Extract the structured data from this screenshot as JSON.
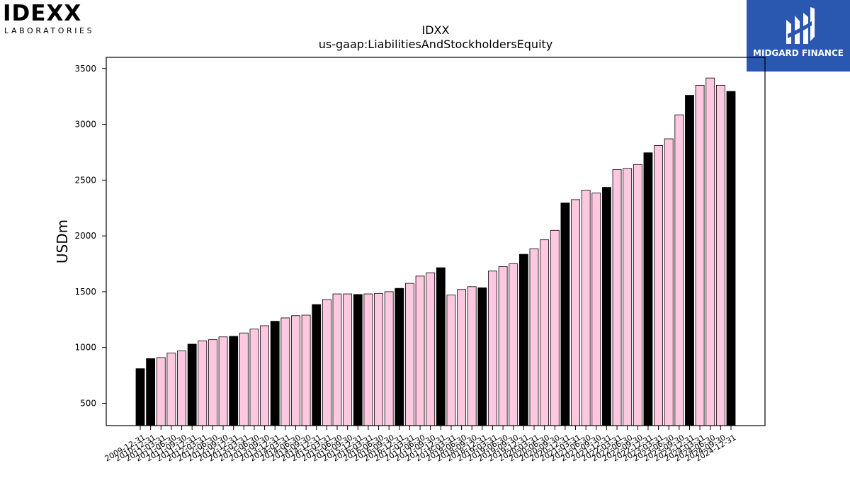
{
  "logos": {
    "left": {
      "name": "IDEXX",
      "sub": "LABORATORIES"
    },
    "right": {
      "name": "MIDGARD FINANCE",
      "bg": "#2a58b0"
    }
  },
  "chart_data": {
    "type": "bar",
    "title": "IDXX",
    "subtitle": "us-gaap:LiabilitiesAndStockholdersEquity",
    "ylabel": "USDm",
    "xlabel": "",
    "ylim": [
      300,
      3600
    ],
    "yticks": [
      500,
      1000,
      1500,
      2000,
      2500,
      3000,
      3500
    ],
    "grid": false,
    "colors": {
      "q4": "#000000",
      "other": "#ffc8e1"
    },
    "categories": [
      "2009-12-31",
      "2010-12-31",
      "2011-03-31",
      "2011-06-30",
      "2011-09-30",
      "2011-12-31",
      "2012-03-31",
      "2012-06-30",
      "2012-09-30",
      "2012-12-31",
      "2013-03-31",
      "2013-06-30",
      "2013-09-30",
      "2013-12-31",
      "2014-03-31",
      "2014-06-30",
      "2014-09-30",
      "2014-12-31",
      "2015-03-31",
      "2015-06-30",
      "2015-09-30",
      "2015-12-31",
      "2016-03-31",
      "2016-06-30",
      "2016-09-30",
      "2016-12-31",
      "2017-03-31",
      "2017-06-30",
      "2017-09-30",
      "2017-12-31",
      "2018-03-31",
      "2018-06-30",
      "2018-09-30",
      "2018-12-31",
      "2019-03-31",
      "2019-06-30",
      "2019-09-30",
      "2019-12-31",
      "2020-03-31",
      "2020-06-30",
      "2020-09-30",
      "2020-12-31",
      "2021-03-31",
      "2021-06-30",
      "2021-09-30",
      "2021-12-31",
      "2022-03-31",
      "2022-06-30",
      "2022-09-30",
      "2022-12-31",
      "2023-03-31",
      "2023-06-30",
      "2023-09-30",
      "2023-12-31",
      "2024-03-31",
      "2024-06-30",
      "2024-09-30",
      "2024-12-31"
    ],
    "values": [
      810,
      900,
      910,
      950,
      970,
      1030,
      1060,
      1070,
      1095,
      1100,
      1130,
      1165,
      1195,
      1235,
      1265,
      1285,
      1290,
      1385,
      1430,
      1480,
      1480,
      1475,
      1480,
      1485,
      1500,
      1530,
      1575,
      1640,
      1670,
      1715,
      1470,
      1520,
      1545,
      1535,
      1685,
      1725,
      1750,
      1835,
      1885,
      1965,
      2050,
      2295,
      2325,
      2410,
      2385,
      2435,
      2595,
      2605,
      2640,
      2745,
      2810,
      2870,
      3085,
      3260,
      3350,
      3415,
      3350,
      3295
    ]
  }
}
